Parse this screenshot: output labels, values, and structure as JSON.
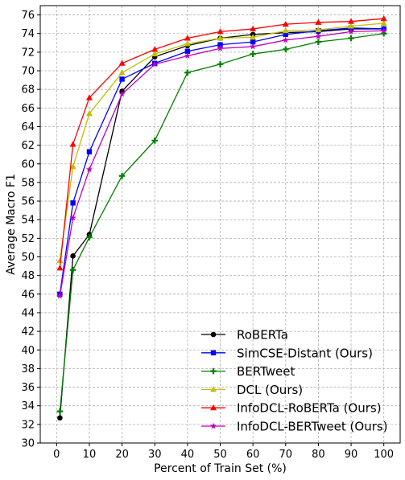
{
  "chart_data": {
    "type": "line",
    "title": "",
    "xlabel": "Percent of Train Set (%)",
    "ylabel": "Average Macro F1",
    "xlim": [
      -5,
      105
    ],
    "ylim": [
      30,
      77
    ],
    "xticks": [
      0,
      10,
      20,
      30,
      40,
      50,
      60,
      70,
      80,
      90,
      100
    ],
    "yticks": [
      30,
      32,
      34,
      36,
      38,
      40,
      42,
      44,
      46,
      48,
      50,
      52,
      54,
      56,
      58,
      60,
      62,
      64,
      66,
      68,
      70,
      72,
      74,
      76
    ],
    "grid": true,
    "legend_position": "lower-right",
    "x": [
      1,
      5,
      10,
      20,
      30,
      40,
      50,
      60,
      70,
      80,
      90,
      100
    ],
    "series": [
      {
        "name": "RoBERTa",
        "color": "#000000",
        "marker": "circle",
        "values": [
          32.7,
          50.1,
          52.4,
          67.8,
          71.5,
          72.7,
          73.5,
          73.9,
          74.1,
          74.2,
          74.5,
          74.5
        ]
      },
      {
        "name": "SimCSE-Distant (Ours)",
        "color": "#0000ff",
        "marker": "square",
        "values": [
          46.0,
          55.8,
          61.3,
          69.1,
          70.8,
          72.1,
          72.8,
          73.1,
          73.9,
          74.3,
          74.6,
          74.5
        ]
      },
      {
        "name": "BERTweet",
        "color": "#008000",
        "marker": "plus",
        "values": [
          33.4,
          48.6,
          52.1,
          58.7,
          62.5,
          69.8,
          70.7,
          71.8,
          72.3,
          73.1,
          73.5,
          74.0
        ]
      },
      {
        "name": "DCL (Ours)",
        "color": "#bfbf00",
        "marker": "triangle",
        "values": [
          49.6,
          59.7,
          65.4,
          69.8,
          71.8,
          72.9,
          73.5,
          73.6,
          74.3,
          74.4,
          74.8,
          75.1
        ]
      },
      {
        "name": "InfoDCL-RoBERTa (Ours)",
        "color": "#ff0000",
        "marker": "triangle",
        "values": [
          48.8,
          62.1,
          67.1,
          70.8,
          72.3,
          73.5,
          74.2,
          74.5,
          75.0,
          75.2,
          75.3,
          75.6
        ]
      },
      {
        "name": "InfoDCL-BERTweet (Ours)",
        "color": "#bf00bf",
        "marker": "star",
        "values": [
          45.8,
          54.2,
          59.4,
          67.5,
          70.7,
          71.6,
          72.4,
          72.6,
          73.3,
          73.7,
          74.2,
          74.3
        ]
      }
    ]
  }
}
